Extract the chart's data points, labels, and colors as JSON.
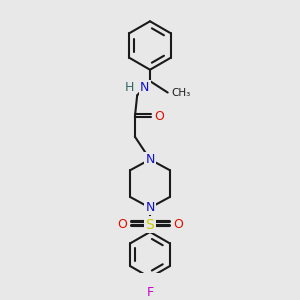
{
  "bg_color": "#e8e8e8",
  "line_color": "#1a1a1a",
  "bond_width": 1.5,
  "figsize": [
    3.0,
    3.0
  ],
  "dpi": 100,
  "scale": 1.0,
  "colors": {
    "N": "#1010cc",
    "O": "#dd1100",
    "S": "#cccc00",
    "F": "#cc00cc",
    "H": "#336666",
    "C": "#1a1a1a"
  }
}
